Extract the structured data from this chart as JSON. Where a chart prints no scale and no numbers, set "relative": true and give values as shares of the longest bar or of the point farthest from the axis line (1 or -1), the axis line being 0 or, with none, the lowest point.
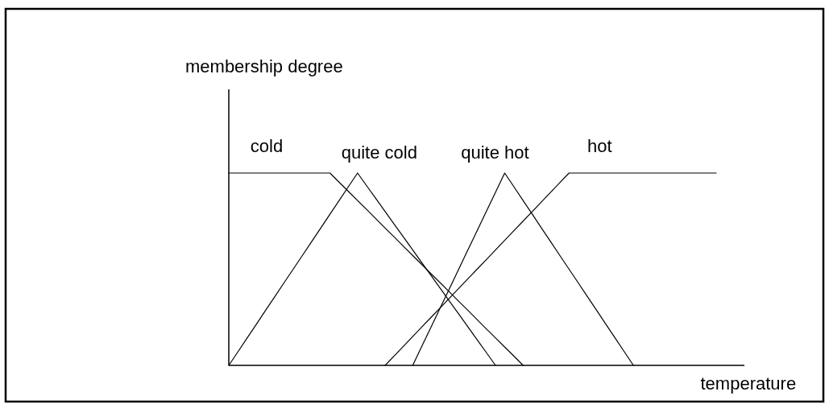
{
  "chart_data": {
    "type": "line",
    "relative": true,
    "xlabel": "temperature",
    "annotations": [
      "membership degree"
    ],
    "line_style": "solid",
    "categories": [
      null,
      null,
      null,
      null,
      null,
      null,
      null,
      null,
      null,
      null,
      null,
      null,
      null,
      null,
      null,
      null,
      null,
      null,
      null,
      null,
      null,
      null,
      null,
      null,
      null,
      null,
      null,
      null,
      null,
      null,
      null,
      null,
      null,
      null,
      null,
      null,
      null,
      null,
      null,
      null,
      null,
      null,
      null,
      null,
      null,
      null,
      null,
      null,
      null,
      null,
      null,
      null,
      null,
      null
    ],
    "series": [
      {
        "name": "cold",
        "color": "#000000",
        "values": [
          1,
          1,
          1,
          1,
          1,
          1,
          1,
          1,
          1,
          1,
          1,
          1,
          0.952,
          0.905,
          0.857,
          0.81,
          0.762,
          0.714,
          0.667,
          0.619,
          0.571,
          0.524,
          0.476,
          0.429,
          0.381,
          0.333,
          0.286,
          0.238,
          0.19,
          0.143,
          0.095,
          0.048,
          0,
          null,
          null,
          null,
          null,
          null,
          null,
          null,
          null,
          null,
          null,
          null,
          null,
          null,
          null,
          null,
          null,
          null,
          null,
          null,
          null,
          null
        ]
      },
      {
        "name": "quite cold",
        "color": "#000000",
        "values": [
          0,
          0.071,
          0.143,
          0.214,
          0.286,
          0.357,
          0.429,
          0.5,
          0.571,
          0.643,
          0.714,
          0.786,
          0.857,
          0.929,
          1,
          0.933,
          0.867,
          0.8,
          0.733,
          0.667,
          0.6,
          0.533,
          0.467,
          0.4,
          0.333,
          0.267,
          0.2,
          0.133,
          0.067,
          0,
          null,
          null,
          null,
          null,
          null,
          null,
          null,
          null,
          null,
          null,
          null,
          null,
          null,
          null,
          null,
          null,
          null,
          null,
          null,
          null,
          null,
          null,
          null,
          null
        ]
      },
      {
        "name": "quite hot",
        "color": "#000000",
        "values": [
          null,
          null,
          null,
          null,
          null,
          null,
          null,
          null,
          null,
          null,
          null,
          null,
          null,
          null,
          null,
          null,
          null,
          null,
          null,
          null,
          0,
          0.1,
          0.2,
          0.3,
          0.4,
          0.5,
          0.6,
          0.7,
          0.8,
          0.9,
          1,
          0.929,
          0.857,
          0.786,
          0.714,
          0.643,
          0.571,
          0.5,
          0.429,
          0.357,
          0.286,
          0.214,
          0.143,
          0.071,
          0,
          null,
          null,
          null,
          null,
          null,
          null,
          null,
          null,
          null
        ]
      },
      {
        "name": "hot",
        "color": "#000000",
        "values": [
          null,
          null,
          null,
          null,
          null,
          null,
          null,
          null,
          null,
          null,
          null,
          null,
          null,
          null,
          null,
          null,
          null,
          0,
          0.05,
          0.1,
          0.15,
          0.2,
          0.25,
          0.3,
          0.35,
          0.4,
          0.45,
          0.5,
          0.55,
          0.6,
          0.65,
          0.7,
          0.75,
          0.8,
          0.85,
          0.9,
          0.95,
          1,
          1,
          1,
          1,
          1,
          1,
          1,
          1,
          1,
          1,
          1,
          1,
          1,
          1,
          1,
          1,
          1
        ]
      }
    ]
  }
}
